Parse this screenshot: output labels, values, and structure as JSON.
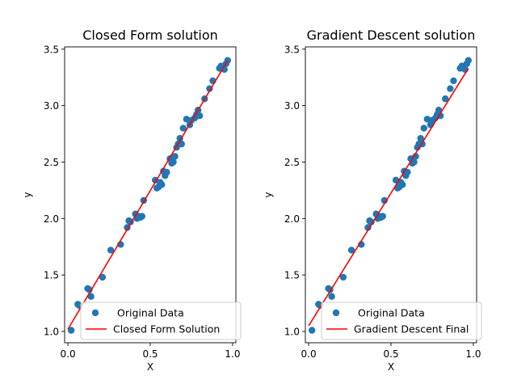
{
  "chart_data": [
    {
      "type": "scatter",
      "title": "Closed Form solution",
      "xlabel": "X",
      "ylabel": "y",
      "xlim": [
        -0.02,
        1.02
      ],
      "ylim": [
        0.9,
        3.52
      ],
      "xticks": [
        "0.0",
        "0.5",
        "1.0"
      ],
      "yticks": [
        "1.0",
        "1.5",
        "2.0",
        "2.5",
        "3.0",
        "3.5"
      ],
      "legend_position": "lower-right",
      "points_color": "#1f77b4",
      "line_color": "#ff0000",
      "series": [
        {
          "name": "Original Data",
          "kind": "scatter",
          "x": [
            0.02,
            0.06,
            0.07,
            0.12,
            0.13,
            0.14,
            0.21,
            0.26,
            0.32,
            0.36,
            0.37,
            0.38,
            0.41,
            0.42,
            0.43,
            0.44,
            0.45,
            0.46,
            0.53,
            0.54,
            0.55,
            0.56,
            0.57,
            0.58,
            0.59,
            0.6,
            0.62,
            0.63,
            0.64,
            0.65,
            0.66,
            0.67,
            0.68,
            0.69,
            0.7,
            0.72,
            0.74,
            0.75,
            0.77,
            0.78,
            0.79,
            0.8,
            0.83,
            0.86,
            0.88,
            0.92,
            0.93,
            0.95,
            0.96,
            0.97
          ],
          "y": [
            1.01,
            1.24,
            1.23,
            1.38,
            1.37,
            1.31,
            1.48,
            1.72,
            1.77,
            1.92,
            1.98,
            1.97,
            2.04,
            2.0,
            2.02,
            2.01,
            2.02,
            2.16,
            2.34,
            2.27,
            2.28,
            2.32,
            2.3,
            2.42,
            2.38,
            2.41,
            2.53,
            2.49,
            2.5,
            2.55,
            2.63,
            2.66,
            2.71,
            2.66,
            2.8,
            2.88,
            2.83,
            2.87,
            2.89,
            2.92,
            2.96,
            2.91,
            3.06,
            3.15,
            3.22,
            3.33,
            3.35,
            3.32,
            3.37,
            3.4
          ]
        },
        {
          "name": "Closed Form Solution",
          "kind": "line",
          "x": [
            0.0,
            0.97
          ],
          "y": [
            1.02,
            3.4
          ]
        }
      ]
    },
    {
      "type": "scatter",
      "title": "Gradient Descent solution",
      "xlabel": "X",
      "ylabel": "y",
      "xlim": [
        -0.02,
        1.02
      ],
      "ylim": [
        0.9,
        3.52
      ],
      "xticks": [
        "0.0",
        "0.5",
        "1.0"
      ],
      "yticks": [
        "1.0",
        "1.5",
        "2.0",
        "2.5",
        "3.0",
        "3.5"
      ],
      "legend_position": "lower-right",
      "points_color": "#1f77b4",
      "line_color": "#ff0000",
      "series": [
        {
          "name": "Original Data",
          "kind": "scatter",
          "x": [
            0.02,
            0.06,
            0.07,
            0.12,
            0.13,
            0.14,
            0.21,
            0.26,
            0.32,
            0.36,
            0.37,
            0.38,
            0.41,
            0.42,
            0.43,
            0.44,
            0.45,
            0.46,
            0.53,
            0.54,
            0.55,
            0.56,
            0.57,
            0.58,
            0.59,
            0.6,
            0.62,
            0.63,
            0.64,
            0.65,
            0.66,
            0.67,
            0.68,
            0.69,
            0.7,
            0.72,
            0.74,
            0.75,
            0.77,
            0.78,
            0.79,
            0.8,
            0.83,
            0.86,
            0.88,
            0.92,
            0.93,
            0.95,
            0.96,
            0.97
          ],
          "y": [
            1.01,
            1.24,
            1.23,
            1.38,
            1.37,
            1.31,
            1.48,
            1.72,
            1.77,
            1.92,
            1.98,
            1.97,
            2.04,
            2.0,
            2.02,
            2.01,
            2.02,
            2.16,
            2.34,
            2.27,
            2.28,
            2.32,
            2.3,
            2.42,
            2.38,
            2.41,
            2.53,
            2.49,
            2.5,
            2.55,
            2.63,
            2.66,
            2.71,
            2.66,
            2.8,
            2.88,
            2.83,
            2.87,
            2.89,
            2.92,
            2.96,
            2.91,
            3.06,
            3.15,
            3.22,
            3.33,
            3.35,
            3.32,
            3.37,
            3.4
          ]
        },
        {
          "name": "Gradient Descent Final",
          "kind": "line",
          "x": [
            0.0,
            0.97
          ],
          "y": [
            1.05,
            3.33
          ]
        }
      ]
    }
  ]
}
